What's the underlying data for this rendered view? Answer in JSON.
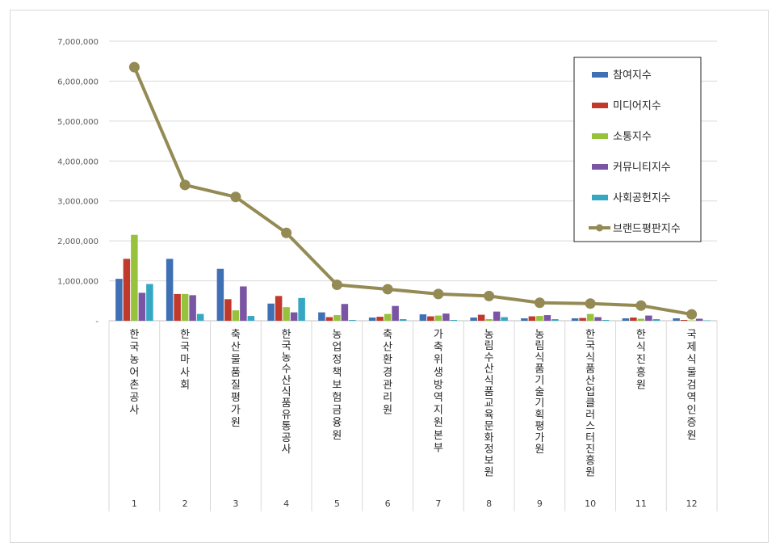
{
  "chart_data": {
    "type": "bar",
    "numbers": [
      "1",
      "2",
      "3",
      "4",
      "5",
      "6",
      "7",
      "8",
      "9",
      "10",
      "11",
      "12"
    ],
    "categories": [
      "한국농어촌공사",
      "한국마사회",
      "축산물품질평가원",
      "한국농수산식품유통공사",
      "농업정책보험금융원",
      "축산환경관리원",
      "가축위생방역지원본부",
      "농림수산식품교육문화정보원",
      "농림식품기술기획평가원",
      "한국식품산업클러스터진흥원",
      "한식진흥원",
      "국제식물검역인증원"
    ],
    "series": [
      {
        "name": "참여지수",
        "color": "#3f6fb5",
        "values": [
          1050000,
          1550000,
          1300000,
          430000,
          210000,
          80000,
          160000,
          80000,
          60000,
          60000,
          60000,
          60000
        ]
      },
      {
        "name": "미디어지수",
        "color": "#c0392b",
        "values": [
          1550000,
          670000,
          540000,
          620000,
          90000,
          100000,
          110000,
          150000,
          110000,
          70000,
          80000,
          20000
        ]
      },
      {
        "name": "소통지수",
        "color": "#96c23c",
        "values": [
          2150000,
          670000,
          260000,
          340000,
          140000,
          170000,
          130000,
          40000,
          120000,
          170000,
          50000,
          10000
        ]
      },
      {
        "name": "커뮤니티지수",
        "color": "#7a55a3",
        "values": [
          700000,
          640000,
          860000,
          210000,
          420000,
          370000,
          180000,
          230000,
          140000,
          90000,
          130000,
          50000
        ]
      },
      {
        "name": "사회공헌지수",
        "color": "#35a7c4",
        "values": [
          920000,
          170000,
          120000,
          570000,
          20000,
          40000,
          20000,
          90000,
          40000,
          20000,
          40000,
          10000
        ]
      },
      {
        "name": "브랜드평판지수",
        "color": "#948a54",
        "type": "line",
        "values": [
          6350000,
          3400000,
          3100000,
          2200000,
          900000,
          790000,
          670000,
          620000,
          450000,
          430000,
          380000,
          160000
        ]
      }
    ],
    "yticks": [
      "-",
      "1,000,000",
      "2,000,000",
      "3,000,000",
      "4,000,000",
      "5,000,000",
      "6,000,000",
      "7,000,000"
    ],
    "ylim": [
      0,
      7000000
    ],
    "grid": true,
    "legend": "top-right"
  }
}
